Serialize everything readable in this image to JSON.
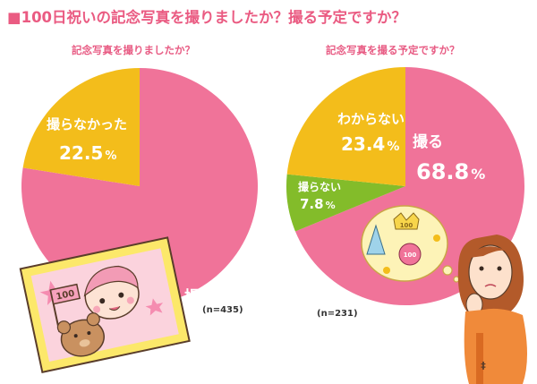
{
  "page": {
    "title": "■100日祝いの記念写真を撮りましたか？撮る予定ですか？"
  },
  "colors": {
    "pink": "#f07399",
    "yellow": "#f3bd1b",
    "green": "#83bc2a",
    "title": "#ea5b82",
    "label_white": "#ffffff"
  },
  "chart_data": [
    {
      "type": "pie",
      "title": "記念写真を撮りましたか？",
      "sample_size": "(n=435)",
      "slices": [
        {
          "label": "撮った",
          "value": 77.5,
          "display": "77.5",
          "unit": "%",
          "color": "#f07399"
        },
        {
          "label": "撮らなかった",
          "value": 22.5,
          "display": "22.5",
          "unit": "%",
          "color": "#f3bd1b"
        }
      ]
    },
    {
      "type": "pie",
      "title": "記念写真を撮る予定ですか？",
      "sample_size": "(n=231)",
      "slices": [
        {
          "label": "撮る",
          "value": 68.8,
          "display": "68.8",
          "unit": "%",
          "color": "#f07399"
        },
        {
          "label": "撮らない",
          "value": 7.8,
          "display": "7.8",
          "unit": "%",
          "color": "#83bc2a"
        },
        {
          "label": "わからない",
          "value": 23.4,
          "display": "23.4",
          "unit": "%",
          "color": "#f3bd1b"
        }
      ]
    }
  ],
  "illustrations": {
    "baby_photo": "baby-photo-illustration",
    "thinking_woman": "thinking-woman-illustration"
  }
}
